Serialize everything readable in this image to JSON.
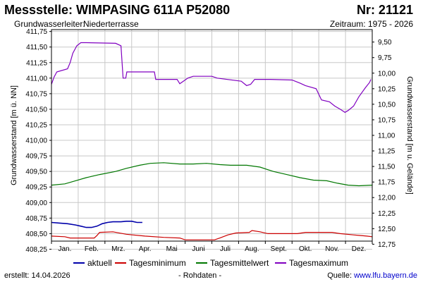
{
  "header": {
    "title": "Messstelle: WIMPASING 611A P52080",
    "nr": "Nr: 21121",
    "aquifer_label": "Grundwasserleiter:",
    "aquifer_value": "Niederterrasse",
    "period": "Zeitraum: 1975 - 2026"
  },
  "footer": {
    "created": "erstellt:  14.04.2026",
    "raw": "- Rohdaten -",
    "source_label": "Quelle:",
    "source_link": "www.lfu.bayern.de"
  },
  "colors": {
    "aktuell": "#0000aa",
    "minimum": "#cc0000",
    "mittel": "#007700",
    "maximum": "#8000c0",
    "grid": "#c8c8c8"
  },
  "chart_data": {
    "type": "line",
    "xlabel": "",
    "ylabel": "Grundwasserstand [m ü. NN]",
    "ylabel_right": "Grundwasserstand [m u. Gelände]",
    "ylim": [
      408.38,
      411.78
    ],
    "yticks": [
      "411,75",
      "411,50",
      "411,25",
      "411,00",
      "410,75",
      "410,50",
      "410,25",
      "410,00",
      "409,75",
      "409,50",
      "409,25",
      "409,00",
      "408,75",
      "408,50",
      "408,25"
    ],
    "ytick_values": [
      411.75,
      411.5,
      411.25,
      411.0,
      410.75,
      410.5,
      410.25,
      410.0,
      409.75,
      409.5,
      409.25,
      409.0,
      408.75,
      408.5,
      408.25
    ],
    "yticks_right": [
      "9,50",
      "9,75",
      "10,00",
      "10,25",
      "10,50",
      "10,75",
      "11,00",
      "11,25",
      "11,50",
      "11,75",
      "12,00",
      "12,25",
      "12,50",
      "12,75"
    ],
    "ytick_right_values": [
      9.5,
      9.75,
      10.0,
      10.25,
      10.5,
      10.75,
      11.0,
      11.25,
      11.5,
      11.75,
      12.0,
      12.25,
      12.5,
      12.75
    ],
    "right_axis_reference": 421.08,
    "months": [
      "Jan.",
      "Feb.",
      "Mrz.",
      "Apr.",
      "Mai",
      "Juni",
      "Juli",
      "Aug.",
      "Sept.",
      "Okt.",
      "Nov.",
      "Dez."
    ],
    "grid": true,
    "legend_position": "bottom",
    "series": [
      {
        "name": "aktuell",
        "points": [
          [
            0,
            408.68
          ],
          [
            0.3,
            408.67
          ],
          [
            0.6,
            408.66
          ],
          [
            0.9,
            408.64
          ],
          [
            1.1,
            408.62
          ],
          [
            1.3,
            408.6
          ],
          [
            1.5,
            408.6
          ],
          [
            1.7,
            408.62
          ],
          [
            1.9,
            408.66
          ],
          [
            2.1,
            408.68
          ],
          [
            2.3,
            408.69
          ],
          [
            2.6,
            408.69
          ],
          [
            2.8,
            408.7
          ],
          [
            3.0,
            408.7
          ],
          [
            3.2,
            408.68
          ],
          [
            3.4,
            408.68
          ]
        ]
      },
      {
        "name": "Tagesminimum",
        "points": [
          [
            0,
            408.46
          ],
          [
            0.5,
            408.45
          ],
          [
            0.7,
            408.43
          ],
          [
            1.6,
            408.43
          ],
          [
            1.7,
            408.47
          ],
          [
            1.8,
            408.52
          ],
          [
            2.3,
            408.53
          ],
          [
            2.8,
            408.49
          ],
          [
            3.5,
            408.46
          ],
          [
            4.2,
            408.44
          ],
          [
            4.8,
            408.43
          ],
          [
            5.0,
            408.4
          ],
          [
            6.1,
            408.4
          ],
          [
            6.3,
            408.43
          ],
          [
            6.6,
            408.48
          ],
          [
            6.9,
            408.51
          ],
          [
            7.4,
            408.52
          ],
          [
            7.5,
            408.55
          ],
          [
            7.8,
            408.53
          ],
          [
            8.1,
            408.5
          ],
          [
            9.2,
            408.5
          ],
          [
            9.5,
            408.52
          ],
          [
            10.5,
            408.52
          ],
          [
            10.8,
            408.5
          ],
          [
            11.3,
            408.48
          ],
          [
            11.8,
            408.46
          ],
          [
            12,
            408.45
          ]
        ]
      },
      {
        "name": "Tagesmittelwert",
        "points": [
          [
            0,
            409.28
          ],
          [
            0.5,
            409.3
          ],
          [
            0.9,
            409.35
          ],
          [
            1.3,
            409.4
          ],
          [
            1.8,
            409.45
          ],
          [
            2.4,
            409.5
          ],
          [
            2.8,
            409.55
          ],
          [
            3.3,
            409.6
          ],
          [
            3.7,
            409.63
          ],
          [
            4.2,
            409.64
          ],
          [
            4.8,
            409.62
          ],
          [
            5.3,
            409.62
          ],
          [
            5.8,
            409.63
          ],
          [
            6.3,
            409.61
          ],
          [
            6.7,
            409.6
          ],
          [
            7.3,
            409.6
          ],
          [
            7.8,
            409.57
          ],
          [
            8.3,
            409.5
          ],
          [
            8.8,
            409.45
          ],
          [
            9.3,
            409.4
          ],
          [
            9.8,
            409.36
          ],
          [
            10.3,
            409.35
          ],
          [
            10.7,
            409.31
          ],
          [
            11.1,
            409.28
          ],
          [
            11.5,
            409.27
          ],
          [
            12,
            409.28
          ]
        ]
      },
      {
        "name": "Tagesmaximum",
        "points": [
          [
            0,
            410.9
          ],
          [
            0.1,
            411.02
          ],
          [
            0.2,
            411.1
          ],
          [
            0.6,
            411.15
          ],
          [
            0.7,
            411.25
          ],
          [
            0.8,
            411.4
          ],
          [
            0.95,
            411.52
          ],
          [
            1.1,
            411.57
          ],
          [
            1.3,
            411.57
          ],
          [
            2.4,
            411.56
          ],
          [
            2.6,
            411.52
          ],
          [
            2.68,
            411.0
          ],
          [
            2.78,
            411.0
          ],
          [
            2.82,
            411.1
          ],
          [
            3.3,
            411.1
          ],
          [
            3.85,
            411.1
          ],
          [
            3.9,
            410.98
          ],
          [
            4.7,
            410.98
          ],
          [
            4.8,
            410.91
          ],
          [
            4.9,
            410.94
          ],
          [
            5.1,
            411.0
          ],
          [
            5.3,
            411.03
          ],
          [
            6.0,
            411.03
          ],
          [
            6.2,
            411.0
          ],
          [
            7.1,
            410.95
          ],
          [
            7.3,
            410.88
          ],
          [
            7.45,
            410.9
          ],
          [
            7.6,
            410.98
          ],
          [
            8.2,
            410.98
          ],
          [
            9.0,
            410.97
          ],
          [
            9.3,
            410.92
          ],
          [
            9.5,
            410.88
          ],
          [
            9.9,
            410.83
          ],
          [
            10.1,
            410.65
          ],
          [
            10.4,
            410.62
          ],
          [
            10.6,
            410.55
          ],
          [
            10.8,
            410.5
          ],
          [
            10.98,
            410.45
          ],
          [
            11.1,
            410.48
          ],
          [
            11.3,
            410.55
          ],
          [
            11.5,
            410.7
          ],
          [
            11.75,
            410.85
          ],
          [
            11.9,
            410.93
          ],
          [
            11.95,
            410.98
          ]
        ]
      }
    ]
  }
}
